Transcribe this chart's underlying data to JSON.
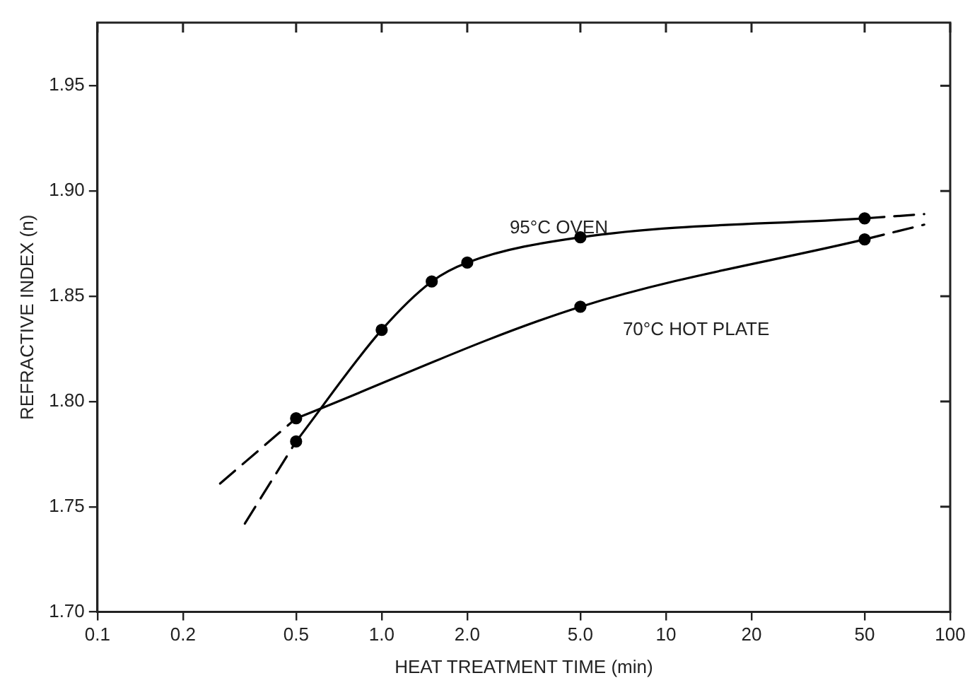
{
  "chart_data": {
    "type": "line",
    "xlabel": "HEAT TREATMENT TIME (min)",
    "ylabel": "REFRACTIVE INDEX (n)",
    "log": "x",
    "xlim": [
      0.1,
      100
    ],
    "ylim": [
      1.7,
      1.98
    ],
    "xticks": [
      0.1,
      0.2,
      0.5,
      {
        "value": 1,
        "label": "1.0"
      },
      {
        "value": 2,
        "label": "2.0"
      },
      {
        "value": 5,
        "label": "5.0"
      },
      10,
      20,
      50,
      100
    ],
    "yticks": [
      {
        "value": 1.7,
        "label": "1.70"
      },
      1.75,
      {
        "value": 1.8,
        "label": "1.80"
      },
      1.85,
      {
        "value": 1.9,
        "label": "1.90"
      },
      1.95
    ],
    "grid": false,
    "legend": false,
    "series": [
      {
        "name": "95°C OVEN",
        "color": "#000000",
        "marker": "circle",
        "line_style": "solid",
        "x": [
          0.5,
          1,
          1.5,
          2,
          5,
          50
        ],
        "values": [
          1.781,
          1.834,
          1.857,
          1.866,
          1.878,
          1.887
        ]
      },
      {
        "name": "70°C HOT PLATE",
        "color": "#000000",
        "marker": "circle",
        "line_style": "solid",
        "x": [
          0.5,
          5,
          50
        ],
        "values": [
          1.792,
          1.845,
          1.877
        ]
      },
      {
        "color": "#000000",
        "marker": "none",
        "line_style": "dashed",
        "x": [
          0.33,
          0.5
        ],
        "values": [
          1.742,
          1.781
        ]
      },
      {
        "color": "#000000",
        "marker": "none",
        "line_style": "dashed",
        "x": [
          50,
          81
        ],
        "values": [
          1.887,
          1.889
        ]
      },
      {
        "color": "#000000",
        "marker": "none",
        "line_style": "dashed",
        "x": [
          0.27,
          0.5
        ],
        "values": [
          1.761,
          1.792
        ]
      },
      {
        "color": "#000000",
        "marker": "none",
        "line_style": "dashed",
        "x": [
          50,
          81
        ],
        "values": [
          1.877,
          1.884
        ]
      }
    ]
  }
}
